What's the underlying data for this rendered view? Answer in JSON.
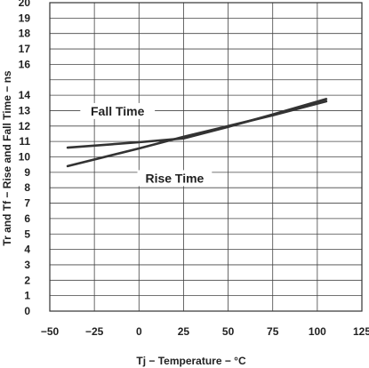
{
  "chart_data": {
    "type": "line",
    "xlabel": "Tj − Temperature − °C",
    "ylabel": "Tr and Tf − Rise and Fall Time − ns",
    "xlim": [
      -50,
      125
    ],
    "ylim": [
      0,
      20
    ],
    "x_ticks": [
      -50,
      -25,
      0,
      25,
      50,
      75,
      100,
      125
    ],
    "y_ticks": [
      0,
      1,
      2,
      3,
      4,
      5,
      6,
      7,
      8,
      9,
      10,
      11,
      12,
      13,
      14,
      16,
      17,
      18,
      19,
      20
    ],
    "grid": true,
    "series": [
      {
        "name": "Fall Time",
        "x": [
          -40,
          0,
          25,
          50,
          75,
          105
        ],
        "y": [
          10.6,
          10.95,
          11.2,
          11.95,
          12.75,
          13.75
        ]
      },
      {
        "name": "Rise Time",
        "x": [
          -40,
          0,
          25,
          50,
          75,
          105
        ],
        "y": [
          9.4,
          10.55,
          11.3,
          12.0,
          12.7,
          13.6
        ]
      }
    ],
    "annotations": [
      {
        "text": "Fall Time",
        "x": -12,
        "y": 12.8
      },
      {
        "text": "Rise Time",
        "x": 20,
        "y": 8.45
      }
    ]
  }
}
